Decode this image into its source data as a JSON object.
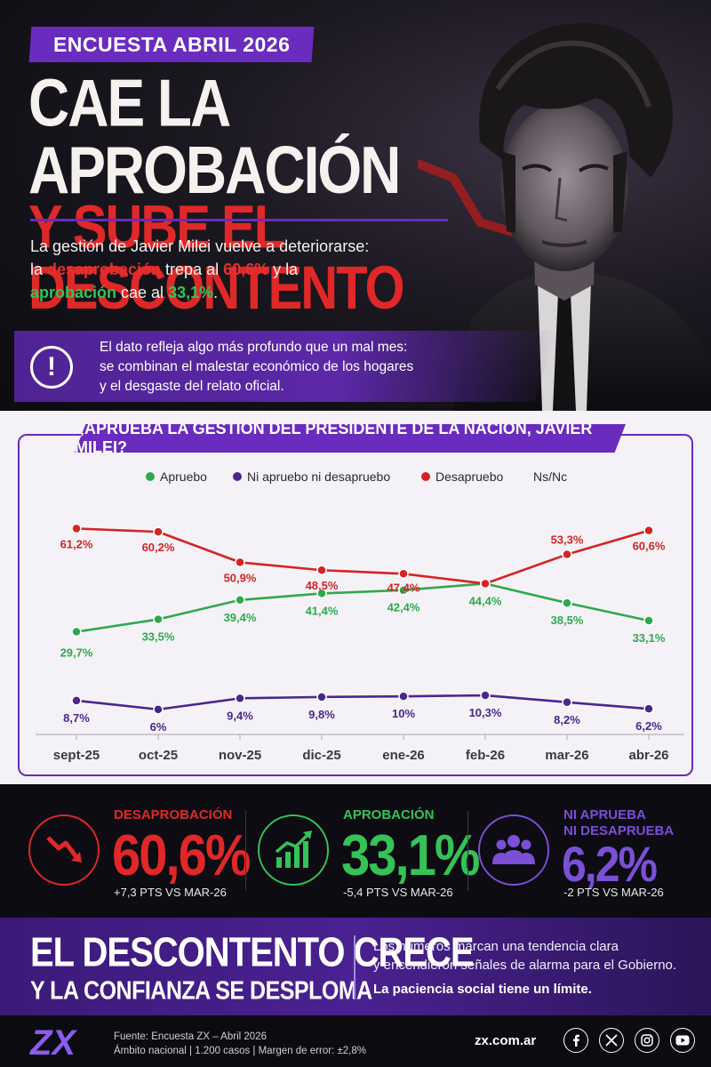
{
  "header": {
    "tag": "ENCUESTA ABRIL 2026",
    "headline_line1": "CAE LA APROBACIÓN",
    "headline_line2": "Y SUBE EL DESCONTENTO",
    "intro_1": "La gestión de Javier Milei vuelve a deteriorarse:",
    "intro_2a": "la ",
    "intro_2b": "desaprobación",
    "intro_2c": " trepa al ",
    "intro_2d": "60,6%",
    "intro_2e": " y la",
    "intro_3a": "aprobación",
    "intro_3b": " cae al ",
    "intro_3c": "33,1%",
    "intro_3d": "."
  },
  "callout": {
    "icon": "!",
    "line1": "El dato refleja algo más profundo que un mal mes:",
    "line2": "se combinan el malestar económico de los hogares",
    "line3": "y el desgaste del relato oficial."
  },
  "colors": {
    "purple": "#6a2bbf",
    "red": "#d42424",
    "green": "#2fa84f",
    "dark_purple": "#4a2690"
  },
  "chart_data": {
    "type": "line",
    "title": "¿APRUEBA LA GESTIÓN DEL PRESIDENTE DE LA NACIÓN, JAVIER MILEI?",
    "categories": [
      "sept-25",
      "oct-25",
      "nov-25",
      "dic-25",
      "ene-26",
      "feb-26",
      "mar-26",
      "abr-26"
    ],
    "legend": [
      "Apruebo",
      "Ni apruebo ni desapruebo",
      "Desapruebo",
      "Ns/Nc"
    ],
    "legend_placement": "top",
    "ylim": [
      0,
      70
    ],
    "grid": false,
    "series": [
      {
        "name": "Apruebo",
        "color": "#2fa84f",
        "values": [
          29.7,
          33.5,
          39.4,
          41.4,
          42.4,
          44.4,
          38.5,
          33.1
        ],
        "labels": [
          "29,7%",
          "33,5%",
          "39,4%",
          "41,4%",
          "42,4%",
          "44,4%",
          "38,5%",
          "33,1%"
        ]
      },
      {
        "name": "Ni apruebo ni desapruebo",
        "color": "#4a2690",
        "values": [
          8.7,
          6,
          9.4,
          9.8,
          10,
          10.3,
          8.2,
          6.2
        ],
        "labels": [
          "8,7%",
          "6%",
          "9,4%",
          "9,8%",
          "10%",
          "10,3%",
          "8,2%",
          "6,2%"
        ]
      },
      {
        "name": "Desapruebo",
        "color": "#d42424",
        "values": [
          61.2,
          60.2,
          50.9,
          48.5,
          47.4,
          44.4,
          53.3,
          60.6
        ],
        "labels": [
          "61,2%",
          "60,2%",
          "50,9%",
          "48,5%",
          "47,4%",
          "",
          "53,3%",
          "60,6%"
        ]
      }
    ]
  },
  "stats": [
    {
      "label": "DESAPROBACIÓN",
      "value": "60,6%",
      "delta_pts": "+7,3",
      "delta_rest": " PTS VS MAR-26",
      "color": "#e02828",
      "icon": "trend-down-icon"
    },
    {
      "label": "APROBACIÓN",
      "value": "33,1%",
      "delta_pts": "-5,4",
      "delta_rest": " PTS VS MAR-26",
      "color": "#35c257",
      "icon": "trend-up-icon"
    },
    {
      "label": "NI APRUEBA",
      "label2": "NI DESAPRUEBA",
      "value": "6,2%",
      "delta_pts": "-2",
      "delta_rest": " PTS VS MAR-26",
      "color": "#7b4fd6",
      "icon": "group-icon"
    }
  ],
  "banner": {
    "big1": "EL DESCONTENTO CRECE",
    "big2": "Y LA CONFIANZA SE DESPLOMA",
    "text1": "Los números marcan una tendencia clara",
    "text2": "y encendieron señales de alarma para el Gobierno.",
    "text3": "La paciencia social tiene un límite."
  },
  "footer": {
    "logo": "ZX",
    "source1": "Fuente: Encuesta ZX – Abril 2026",
    "source2": "Ámbito nacional | 1.200 casos | Margen de error: ±2,8%",
    "site": "zx.com.ar",
    "socials": [
      "facebook-icon",
      "x-icon",
      "instagram-icon",
      "youtube-icon"
    ]
  }
}
